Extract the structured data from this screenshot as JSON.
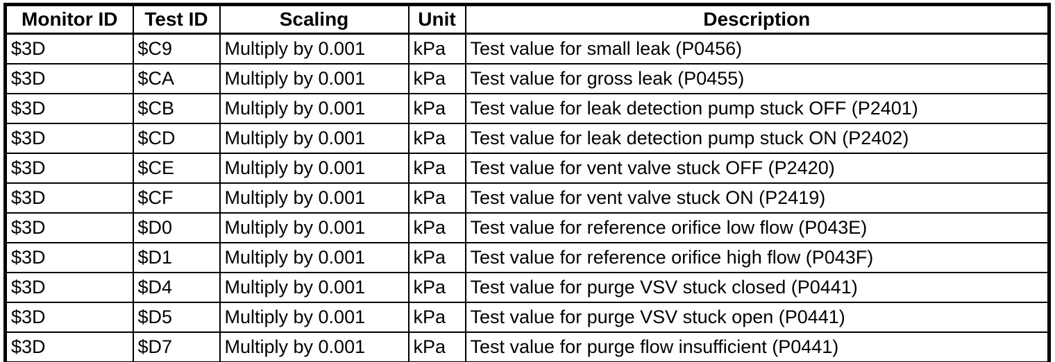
{
  "table": {
    "columns": [
      "Monitor ID",
      "Test ID",
      "Scaling",
      "Unit",
      "Description"
    ],
    "rows": [
      {
        "monitor_id": "$3D",
        "test_id": "$C9",
        "scaling": "Multiply by 0.001",
        "unit": "kPa",
        "description": "Test value for small leak (P0456)"
      },
      {
        "monitor_id": "$3D",
        "test_id": "$CA",
        "scaling": "Multiply by 0.001",
        "unit": "kPa",
        "description": "Test value for gross leak (P0455)"
      },
      {
        "monitor_id": "$3D",
        "test_id": "$CB",
        "scaling": "Multiply by 0.001",
        "unit": "kPa",
        "description": "Test value for leak detection pump stuck OFF (P2401)"
      },
      {
        "monitor_id": "$3D",
        "test_id": "$CD",
        "scaling": "Multiply by 0.001",
        "unit": "kPa",
        "description": "Test value for leak detection pump stuck ON (P2402)"
      },
      {
        "monitor_id": "$3D",
        "test_id": "$CE",
        "scaling": "Multiply by 0.001",
        "unit": "kPa",
        "description": "Test value for vent valve stuck OFF (P2420)"
      },
      {
        "monitor_id": "$3D",
        "test_id": "$CF",
        "scaling": "Multiply by 0.001",
        "unit": "kPa",
        "description": "Test value for vent valve stuck ON (P2419)"
      },
      {
        "monitor_id": "$3D",
        "test_id": "$D0",
        "scaling": "Multiply by 0.001",
        "unit": "kPa",
        "description": "Test value for reference orifice low flow (P043E)"
      },
      {
        "monitor_id": "$3D",
        "test_id": "$D1",
        "scaling": "Multiply by 0.001",
        "unit": "kPa",
        "description": "Test value for reference orifice high flow (P043F)"
      },
      {
        "monitor_id": "$3D",
        "test_id": "$D4",
        "scaling": "Multiply by 0.001",
        "unit": "kPa",
        "description": "Test value for purge VSV stuck closed (P0441)"
      },
      {
        "monitor_id": "$3D",
        "test_id": "$D5",
        "scaling": "Multiply by 0.001",
        "unit": "kPa",
        "description": "Test value for purge VSV stuck open (P0441)"
      },
      {
        "monitor_id": "$3D",
        "test_id": "$D7",
        "scaling": "Multiply by 0.001",
        "unit": "kPa",
        "description": "Test value for purge flow insufficient (P0441)"
      }
    ],
    "colors": {
      "border": "#000000",
      "background": "#ffffff",
      "text": "#000000"
    }
  }
}
